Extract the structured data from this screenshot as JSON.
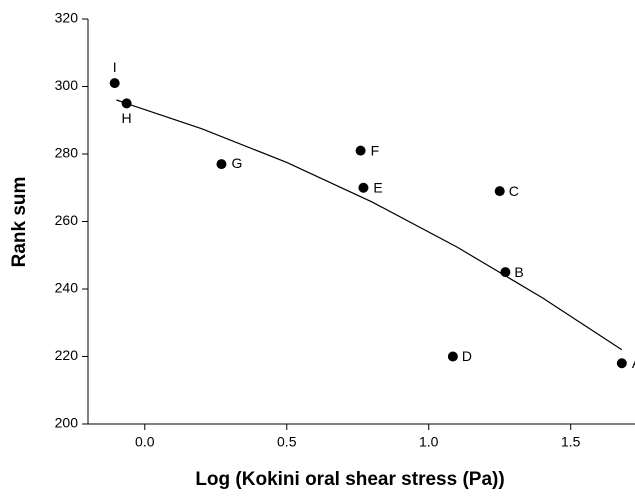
{
  "chart_data": {
    "type": "scatter",
    "x_label": "Log (Kokini oral shear stress (Pa))",
    "y_label": "Rank sum",
    "xlim": [
      -0.2,
      1.7
    ],
    "ylim": [
      200,
      320
    ],
    "xticks": [
      {
        "value": 0,
        "label": "0.0"
      },
      0.5,
      {
        "value": 1,
        "label": "1.0"
      },
      1.5
    ],
    "yticks": [
      200,
      220,
      240,
      260,
      280,
      300,
      320
    ],
    "series": [
      {
        "color": "#000000",
        "x": [
          -0.106,
          -0.064,
          0.27,
          0.76,
          0.77,
          1.25,
          1.27,
          1.085,
          1.68
        ],
        "values": [
          301,
          295,
          277,
          281,
          270,
          269,
          245,
          220,
          218
        ],
        "labels": [
          "I",
          "H",
          "G",
          "F",
          "E",
          "C",
          "B",
          "D",
          "A"
        ]
      },
      {
        "type": "line",
        "color": "#000000",
        "x": [
          -0.1,
          0.2,
          0.5,
          0.8,
          1.1,
          1.4,
          1.68
        ],
        "values": [
          296.0,
          287.5,
          277.5,
          265.8,
          252.4,
          237.4,
          222.0
        ]
      }
    ]
  }
}
